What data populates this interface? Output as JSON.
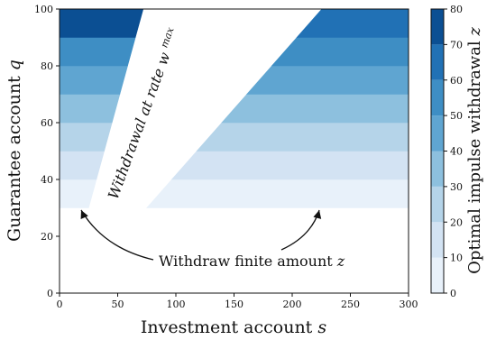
{
  "chart_data": {
    "type": "filled-contour",
    "xlabel": "Investment account s",
    "ylabel": "Guarantee account q",
    "xlim": [
      0,
      300
    ],
    "ylim": [
      0,
      100
    ],
    "x_ticks": [
      0,
      50,
      100,
      150,
      200,
      250,
      300
    ],
    "y_ticks": [
      0,
      20,
      40,
      60,
      80,
      100
    ],
    "colorbar": {
      "label": "Optimal impulse withdrawal z",
      "range": [
        0,
        80
      ],
      "ticks": [
        0,
        10,
        20,
        30,
        40,
        50,
        60,
        70,
        80
      ],
      "levels": [
        {
          "from": 0,
          "to": 10,
          "color": "#e8f1fa"
        },
        {
          "from": 10,
          "to": 20,
          "color": "#d3e3f3"
        },
        {
          "from": 20,
          "to": 30,
          "color": "#b5d4e9"
        },
        {
          "from": 30,
          "to": 40,
          "color": "#8dc0de"
        },
        {
          "from": 40,
          "to": 50,
          "color": "#5fa5d1"
        },
        {
          "from": 50,
          "to": 60,
          "color": "#3e8ec4"
        },
        {
          "from": 60,
          "to": 70,
          "color": "#2171b5"
        },
        {
          "from": 70,
          "to": 80,
          "color": "#0b4f93"
        }
      ]
    },
    "left_region": {
      "bands": [
        {
          "q_from": 21,
          "q_to": 30,
          "color": "#ffffff"
        },
        {
          "q_from": 30,
          "q_to": 40,
          "color": "#e8f1fa"
        },
        {
          "q_from": 40,
          "q_to": 50,
          "color": "#d3e3f3"
        },
        {
          "q_from": 50,
          "q_to": 60,
          "color": "#b5d4e9"
        },
        {
          "q_from": 60,
          "q_to": 70,
          "color": "#8dc0de"
        },
        {
          "q_from": 70,
          "q_to": 80,
          "color": "#5fa5d1"
        },
        {
          "q_from": 80,
          "q_to": 90,
          "color": "#3e8ec4"
        },
        {
          "q_from": 90,
          "q_to": 100,
          "color": "#0b4f93"
        }
      ]
    },
    "right_region": {
      "bands": [
        {
          "q_from": 30,
          "q_to": 40,
          "color": "#e8f1fa"
        },
        {
          "q_from": 40,
          "q_to": 50,
          "color": "#d3e3f3"
        },
        {
          "q_from": 50,
          "q_to": 60,
          "color": "#b5d4e9"
        },
        {
          "q_from": 60,
          "q_to": 70,
          "color": "#8dc0de"
        },
        {
          "q_from": 70,
          "q_to": 80,
          "color": "#5fa5d1"
        },
        {
          "q_from": 80,
          "q_to": 90,
          "color": "#3e8ec4"
        },
        {
          "q_from": 90,
          "q_to": 100,
          "color": "#2171b5"
        }
      ]
    },
    "annotations": {
      "withdrawal_rate": "Withdrawal at rate w",
      "withdrawal_rate_sup": "max",
      "withdraw_finite": "Withdraw finite amount z"
    }
  }
}
